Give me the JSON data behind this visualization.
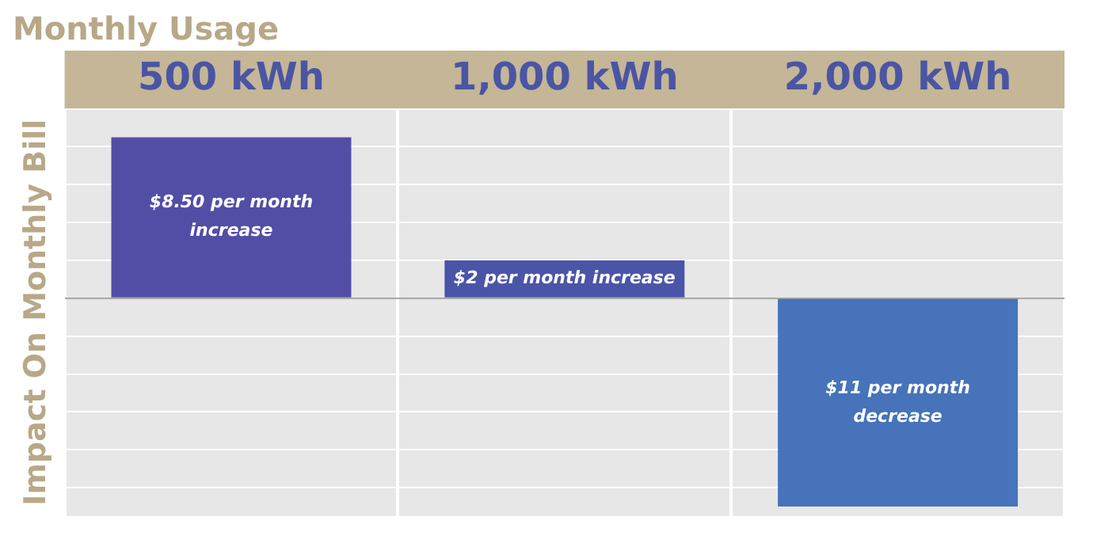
{
  "chart_data": {
    "type": "bar",
    "title": "Monthly Usage",
    "ylabel": "Impact On Monthly Bill",
    "categories": [
      "500 kWh",
      "1,000 kWh",
      "2,000 kWh"
    ],
    "values": [
      8.5,
      2,
      -11
    ],
    "colors": [
      "#524ea6",
      "#4b55a8",
      "#4673ba"
    ],
    "value_labels": [
      "$8.50 per month increase",
      "$2 per month increase",
      "$11 per month decrease"
    ],
    "ylim": [
      -11.5,
      10
    ],
    "yticks": [
      {
        "value": -10,
        "label": null
      },
      {
        "value": -8,
        "label": null
      },
      {
        "value": -6,
        "label": null
      },
      {
        "value": -4,
        "label": null
      },
      {
        "value": -2,
        "label": null
      },
      {
        "value": 0,
        "label": null
      },
      {
        "value": 2,
        "label": null
      },
      {
        "value": 4,
        "label": null
      },
      {
        "value": 6,
        "label": null
      },
      {
        "value": 8,
        "label": null
      },
      {
        "value": 10,
        "label": null
      }
    ],
    "grid": true,
    "tick_labels": "x",
    "legend": false
  }
}
